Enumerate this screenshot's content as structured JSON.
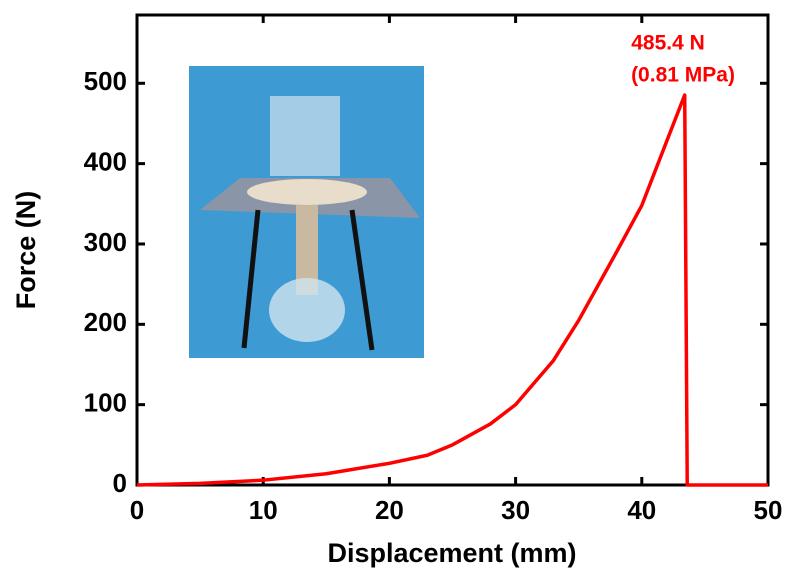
{
  "chart_data": {
    "type": "line",
    "x_label": "Displacement (mm)",
    "y_label": "Force (N)",
    "annotations": [
      "485.4 N",
      "(0.81 MPa)"
    ],
    "xlim": [
      0,
      50
    ],
    "ylim": [
      0,
      585
    ],
    "xticks": [
      0,
      10,
      20,
      30,
      40,
      50
    ],
    "yticks": [
      0,
      100,
      200,
      300,
      400,
      500
    ],
    "grid": false,
    "series": [
      {
        "color": "#ff0000",
        "x": [
          0,
          5,
          10,
          15,
          20,
          23,
          25,
          28,
          30,
          33,
          35,
          38,
          40,
          42,
          43.4,
          43.6,
          44,
          50
        ],
        "values": [
          0,
          2,
          6,
          14,
          27,
          37,
          50,
          76,
          100,
          155,
          205,
          290,
          348,
          429,
          485.4,
          0,
          0,
          0
        ]
      }
    ]
  }
}
